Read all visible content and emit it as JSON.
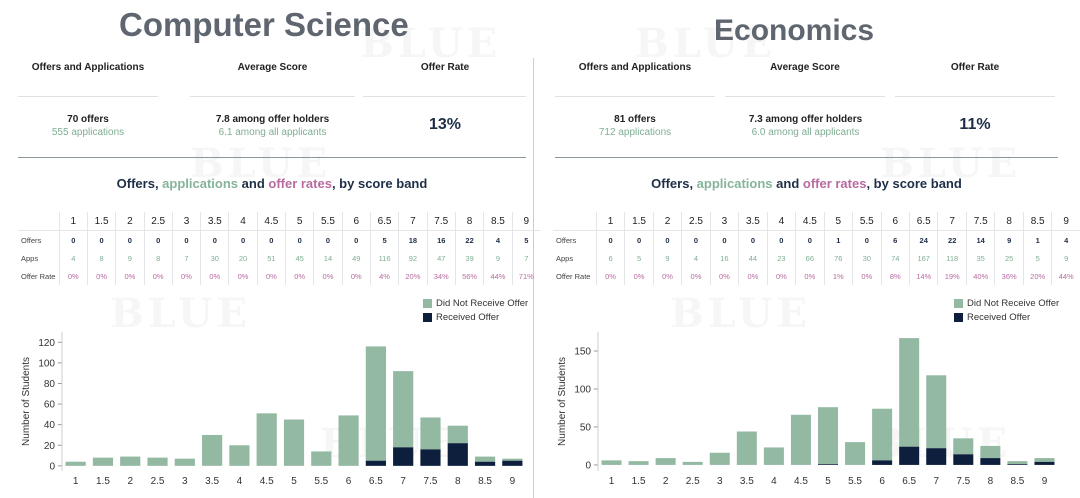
{
  "bands": [
    "1",
    "1.5",
    "2",
    "2.5",
    "3",
    "3.5",
    "4",
    "4.5",
    "5",
    "5.5",
    "6",
    "6.5",
    "7",
    "7.5",
    "8",
    "8.5",
    "9"
  ],
  "headers": {
    "offers_apps": "Offers and Applications",
    "avg_score": "Average Score",
    "offer_rate": "Offer Rate"
  },
  "band_title": {
    "p1": "Offers, ",
    "p2": "applications",
    "p3": " and ",
    "p4": "offer rates",
    "p5": ", by score band"
  },
  "row_labels": {
    "offers": "Offers",
    "apps": "Apps",
    "rate": "Offer Rate"
  },
  "legend": {
    "not_offer": "Did Not Receive Offer",
    "offer": "Received Offer"
  },
  "colors": {
    "not_offer": "#94b9a3",
    "offer": "#0e1f3d"
  },
  "watermark": "BLUE",
  "panels": [
    {
      "title": "Computer Science",
      "summary": {
        "offers": "70 offers",
        "applications": "555 applications",
        "avg_offer": "7.8 among offer holders",
        "avg_all": "6.1 among all applicants",
        "rate": "13%"
      },
      "table": {
        "offers": [
          "0",
          "0",
          "0",
          "0",
          "0",
          "0",
          "0",
          "0",
          "0",
          "0",
          "0",
          "5",
          "18",
          "16",
          "22",
          "4",
          "5"
        ],
        "apps": [
          "4",
          "8",
          "9",
          "8",
          "7",
          "30",
          "20",
          "51",
          "45",
          "14",
          "49",
          "116",
          "92",
          "47",
          "39",
          "9",
          "7"
        ],
        "rates": [
          "0%",
          "0%",
          "0%",
          "0%",
          "0%",
          "0%",
          "0%",
          "0%",
          "0%",
          "0%",
          "0%",
          "4%",
          "20%",
          "34%",
          "56%",
          "44%",
          "71%"
        ]
      },
      "chart_data": {
        "type": "bar",
        "stacked": true,
        "categories": [
          "1",
          "1.5",
          "2",
          "2.5",
          "3",
          "3.5",
          "4",
          "4.5",
          "5",
          "5.5",
          "6",
          "6.5",
          "7",
          "7.5",
          "8",
          "8.5",
          "9"
        ],
        "series": [
          {
            "name": "Received Offer",
            "values": [
              0,
              0,
              0,
              0,
              0,
              0,
              0,
              0,
              0,
              0,
              0,
              5,
              18,
              16,
              22,
              4,
              5
            ]
          },
          {
            "name": "Did Not Receive Offer",
            "values": [
              4,
              8,
              9,
              8,
              7,
              30,
              20,
              51,
              45,
              14,
              49,
              111,
              74,
              31,
              17,
              5,
              2
            ]
          }
        ],
        "ylabel": "Number of Students",
        "ylim": [
          -5,
          130
        ],
        "yticks": [
          0,
          20,
          40,
          60,
          80,
          100,
          120
        ],
        "legend": "top-right"
      }
    },
    {
      "title": "Economics",
      "summary": {
        "offers": "81 offers",
        "applications": "712 applications",
        "avg_offer": "7.3 among offer holders",
        "avg_all": "6.0 among all applicants",
        "rate": "11%"
      },
      "table": {
        "offers": [
          "0",
          "0",
          "0",
          "0",
          "0",
          "0",
          "0",
          "0",
          "1",
          "0",
          "6",
          "24",
          "22",
          "14",
          "9",
          "1",
          "4"
        ],
        "apps": [
          "6",
          "5",
          "9",
          "4",
          "16",
          "44",
          "23",
          "66",
          "76",
          "30",
          "74",
          "167",
          "118",
          "35",
          "25",
          "5",
          "9"
        ],
        "rates": [
          "0%",
          "0%",
          "0%",
          "0%",
          "0%",
          "0%",
          "0%",
          "0%",
          "1%",
          "0%",
          "8%",
          "14%",
          "19%",
          "40%",
          "36%",
          "20%",
          "44%"
        ]
      },
      "chart_data": {
        "type": "bar",
        "stacked": true,
        "categories": [
          "1",
          "1.5",
          "2",
          "2.5",
          "3",
          "3.5",
          "4",
          "4.5",
          "5",
          "5.5",
          "6",
          "6.5",
          "7",
          "7.5",
          "8",
          "8.5",
          "9"
        ],
        "series": [
          {
            "name": "Received Offer",
            "values": [
              0,
              0,
              0,
              0,
              0,
              0,
              0,
              0,
              1,
              0,
              6,
              24,
              22,
              14,
              9,
              1,
              4
            ]
          },
          {
            "name": "Did Not Receive Offer",
            "values": [
              6,
              5,
              9,
              4,
              16,
              44,
              23,
              66,
              75,
              30,
              68,
              143,
              96,
              21,
              16,
              4,
              5
            ]
          }
        ],
        "ylabel": "Number of Students",
        "ylim": [
          -8,
          175
        ],
        "yticks": [
          0,
          50,
          100,
          150
        ],
        "legend": "top-right"
      }
    }
  ]
}
